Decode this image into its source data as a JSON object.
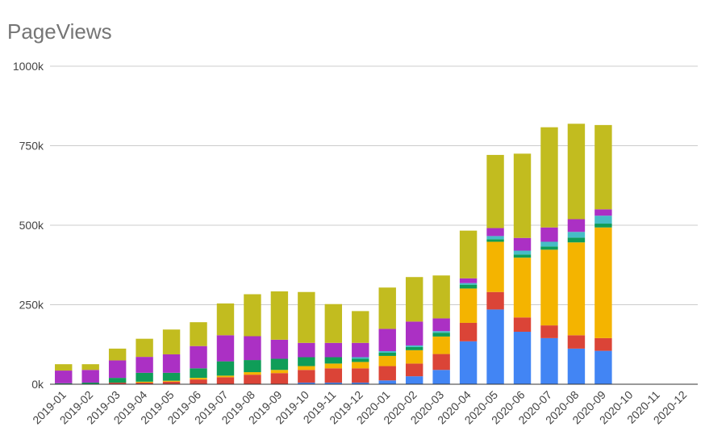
{
  "chart_data": {
    "type": "bar",
    "stacked": true,
    "title": "PageViews",
    "xlabel": "",
    "ylabel": "",
    "ylim": [
      0,
      1000000
    ],
    "y_ticks": [
      0,
      250000,
      500000,
      750000,
      1000000
    ],
    "y_tick_labels": [
      "0k",
      "250k",
      "500k",
      "750k",
      "1000k"
    ],
    "grid": true,
    "legend": "none",
    "categories": [
      "2019-01",
      "2019-02",
      "2019-03",
      "2019-04",
      "2019-05",
      "2019-06",
      "2019-07",
      "2019-08",
      "2019-09",
      "2019-10",
      "2019-11",
      "2019-12",
      "2020-01",
      "2020-02",
      "2020-03",
      "2020-04",
      "2020-05",
      "2020-06",
      "2020-07",
      "2020-08",
      "2020-09",
      "2020-10",
      "2020-11",
      "2020-12"
    ],
    "series": [
      {
        "color": "#4285F4",
        "values": [
          0,
          0,
          0,
          0,
          0,
          0,
          0,
          0,
          0,
          5000,
          5000,
          5000,
          12000,
          25000,
          45000,
          135000,
          235000,
          165000,
          145000,
          112000,
          105000,
          0,
          0,
          0
        ]
      },
      {
        "color": "#DB4437",
        "values": [
          0,
          0,
          5000,
          5000,
          8000,
          15000,
          22000,
          30000,
          35000,
          40000,
          45000,
          45000,
          45000,
          40000,
          50000,
          58000,
          55000,
          45000,
          40000,
          42000,
          40000,
          0,
          0,
          0
        ]
      },
      {
        "color": "#F4B400",
        "values": [
          0,
          0,
          0,
          3000,
          3000,
          5000,
          5000,
          8000,
          10000,
          12000,
          15000,
          20000,
          32000,
          42000,
          55000,
          108000,
          158000,
          188000,
          238000,
          292000,
          348000,
          0,
          0,
          0
        ]
      },
      {
        "color": "#0F9D58",
        "values": [
          3000,
          5000,
          15000,
          28000,
          25000,
          30000,
          45000,
          38000,
          35000,
          28000,
          20000,
          10000,
          10000,
          10000,
          12000,
          12000,
          8000,
          10000,
          10000,
          15000,
          12000,
          0,
          0,
          0
        ]
      },
      {
        "color": "#46BDC6",
        "values": [
          0,
          0,
          0,
          0,
          0,
          0,
          0,
          0,
          0,
          0,
          0,
          5000,
          5000,
          5000,
          5000,
          5000,
          10000,
          12000,
          15000,
          18000,
          25000,
          0,
          0,
          0
        ]
      },
      {
        "color": "#AB30C4",
        "values": [
          40000,
          40000,
          55000,
          50000,
          58000,
          70000,
          82000,
          75000,
          60000,
          45000,
          45000,
          45000,
          70000,
          75000,
          40000,
          15000,
          25000,
          40000,
          45000,
          40000,
          20000,
          0,
          0,
          0
        ]
      },
      {
        "color": "#C2BC1F",
        "values": [
          20000,
          18000,
          37000,
          57000,
          78000,
          75000,
          100000,
          132000,
          152000,
          160000,
          122000,
          100000,
          130000,
          140000,
          135000,
          150000,
          230000,
          265000,
          315000,
          300000,
          265000,
          0,
          0,
          0
        ]
      }
    ]
  }
}
